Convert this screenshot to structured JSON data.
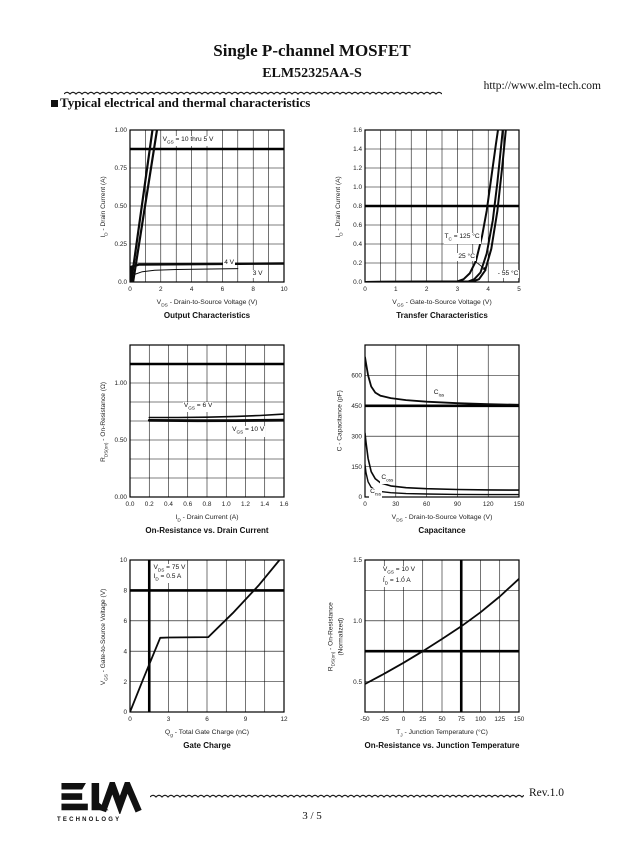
{
  "header": {
    "title": "Single P-channel MOSFET",
    "part_number": "ELM52325AA-S",
    "website": "http://www.elm-tech.com",
    "section_heading": "Typical electrical and thermal characteristics"
  },
  "footer": {
    "revision": "Rev.1.0",
    "page_number": "3 / 5",
    "logo_text": "ELM",
    "logo_subtext": "TECHNOLOGY"
  },
  "colors": {
    "ink": "#111111",
    "paper": "#ffffff"
  },
  "chart_data": [
    {
      "type": "line",
      "title": "Output Characteristics",
      "xlabel": "V_{DS} - Drain-to-Source Voltage (V)",
      "ylabel": "I_{D} - Drain Current (A)",
      "xlim": [
        0,
        10
      ],
      "ylim": [
        0,
        1
      ],
      "xticks": {
        "values": [
          0,
          2,
          4,
          6,
          8,
          10
        ],
        "labels": [
          "0",
          "2",
          "4",
          "6",
          "8",
          "10"
        ]
      },
      "yticks": {
        "values": [
          0,
          0.25,
          0.5,
          0.75,
          1
        ],
        "labels": [
          "0.0",
          "0.25",
          "0.50",
          "0.75",
          "1.00"
        ]
      },
      "grid": {
        "x_step": 1,
        "y_step": 0.125
      },
      "thick_lines": [
        {
          "dir": "h",
          "at": 0.875
        }
      ],
      "series": [
        {
          "name": "VGS = 10 V",
          "width": 2.2,
          "points": [
            [
              0.08,
              0
            ],
            [
              1.5,
              1.03
            ]
          ]
        },
        {
          "name": "VGS = 5 V",
          "width": 2.2,
          "points": [
            [
              0.2,
              0
            ],
            [
              1.8,
              1.03
            ]
          ]
        },
        {
          "name": "VGS = 4 V",
          "width": 2.4,
          "points": [
            [
              0,
              0
            ],
            [
              0.1,
              0.1
            ],
            [
              0.6,
              0.115
            ],
            [
              10,
              0.122
            ]
          ]
        },
        {
          "name": "VGS = 3 V",
          "width": 1,
          "points": [
            [
              0,
              0
            ],
            [
              0.3,
              0.05
            ],
            [
              0.8,
              0.068
            ],
            [
              1.6,
              0.077
            ],
            [
              3,
              0.082
            ],
            [
              7,
              0.088
            ]
          ]
        }
      ],
      "annotations": [
        {
          "text": "V_{GS} = 10 thru 5 V",
          "x": 2.05,
          "y": 0.935
        },
        {
          "text": "4 V",
          "x": 6.05,
          "y": 0.125
        },
        {
          "text": "3 V",
          "x": 7.9,
          "y": 0.052
        }
      ]
    },
    {
      "type": "line",
      "title": "Transfer Characteristics",
      "xlabel": "V_{GS} - Gate-to-Source Voltage (V)",
      "ylabel": "I_{D} - Drain Current (A)",
      "xlim": [
        0,
        5
      ],
      "ylim": [
        0,
        1.6
      ],
      "xticks": {
        "values": [
          0,
          1,
          2,
          3,
          4,
          5
        ],
        "labels": [
          "0",
          "1",
          "2",
          "3",
          "4",
          "5"
        ]
      },
      "yticks": {
        "values": [
          0,
          0.2,
          0.4,
          0.6,
          0.8,
          1,
          1.2,
          1.4,
          1.6
        ],
        "labels": [
          "0.0",
          "0.2",
          "0.4",
          "0.6",
          "0.8",
          "1.0",
          "1.2",
          "1.4",
          "1.6"
        ]
      },
      "grid": {
        "x_step": 0.5,
        "y_step": 0.2
      },
      "thick_lines": [
        {
          "dir": "h",
          "at": 0.8
        }
      ],
      "series": [
        {
          "name": "TC = 125 C",
          "width": 2,
          "points": [
            [
              0,
              0
            ],
            [
              3,
              0.005
            ],
            [
              3.2,
              0.03
            ],
            [
              3.4,
              0.09
            ],
            [
              3.6,
              0.22
            ],
            [
              3.8,
              0.48
            ],
            [
              3.95,
              0.75
            ],
            [
              4.1,
              1.1
            ],
            [
              4.25,
              1.45
            ],
            [
              4.33,
              1.63
            ]
          ]
        },
        {
          "name": "TC = 25 C",
          "width": 2,
          "points": [
            [
              0,
              0
            ],
            [
              3.35,
              0.005
            ],
            [
              3.55,
              0.03
            ],
            [
              3.75,
              0.1
            ],
            [
              3.95,
              0.3
            ],
            [
              4.15,
              0.65
            ],
            [
              4.3,
              1.05
            ],
            [
              4.44,
              1.5
            ],
            [
              4.48,
              1.63
            ]
          ]
        },
        {
          "name": "TC = -55 C",
          "width": 2,
          "points": [
            [
              0,
              0
            ],
            [
              3.5,
              0.005
            ],
            [
              3.7,
              0.03
            ],
            [
              3.9,
              0.12
            ],
            [
              4.1,
              0.35
            ],
            [
              4.3,
              0.75
            ],
            [
              4.45,
              1.2
            ],
            [
              4.58,
              1.63
            ]
          ]
        }
      ],
      "annotations": [
        {
          "text": "T_{C} = 125 °C",
          "x": 2.55,
          "y": 0.47
        },
        {
          "text": "25 °C",
          "x": 3.0,
          "y": 0.26
        },
        {
          "text": "- 55 °C",
          "x": 4.28,
          "y": 0.08
        }
      ],
      "arrows": [
        {
          "from": [
            3.55,
            0.225
          ],
          "to": [
            3.95,
            0.12
          ]
        }
      ]
    },
    {
      "type": "line",
      "title": "On-Resistance vs. Drain Current",
      "xlabel": "I_{D} - Drain Current (A)",
      "ylabel": "R_{DS(on)} - On-Resistance (Ω)",
      "xlim": [
        0,
        1.6
      ],
      "ylim": [
        0,
        1.3333
      ],
      "xticks": {
        "values": [
          0,
          0.2,
          0.4,
          0.6,
          0.8,
          1,
          1.2,
          1.4,
          1.6
        ],
        "labels": [
          "0.0",
          "0.2",
          "0.4",
          "0.6",
          "0.8",
          "1.0",
          "1.2",
          "1.4",
          "1.6"
        ]
      },
      "yticks": {
        "values": [
          0,
          0.5,
          1
        ],
        "labels": [
          "0.00",
          "0.50",
          "1.00"
        ]
      },
      "grid": {
        "x_step": 0.2,
        "y_step": 0.16667
      },
      "thick_lines": [
        {
          "dir": "h",
          "at": 1.16667
        }
      ],
      "series": [
        {
          "name": "VGS = 6 V",
          "width": 1.6,
          "points": [
            [
              0.2,
              0.697
            ],
            [
              0.5,
              0.697
            ],
            [
              0.8,
              0.7
            ],
            [
              1.1,
              0.707
            ],
            [
              1.35,
              0.715
            ],
            [
              1.6,
              0.727
            ]
          ]
        },
        {
          "name": "VGS = 10 V",
          "width": 2.8,
          "points": [
            [
              0.2,
              0.672
            ],
            [
              0.7,
              0.669
            ],
            [
              1.1,
              0.67
            ],
            [
              1.6,
              0.674
            ]
          ]
        }
      ],
      "annotations": [
        {
          "text": "V_{GS} = 6 V",
          "x": 0.55,
          "y": 0.8
        },
        {
          "text": "V_{GS} = 10 V",
          "x": 1.05,
          "y": 0.585
        }
      ]
    },
    {
      "type": "line",
      "title": "Capacitance",
      "xlabel": "V_{DS} - Drain-to-Source Voltage (V)",
      "ylabel": "C - Capacitance (pF)",
      "xlim": [
        0,
        150
      ],
      "ylim": [
        0,
        750
      ],
      "xticks": {
        "values": [
          0,
          30,
          60,
          90,
          120,
          150
        ],
        "labels": [
          "0",
          "30",
          "60",
          "90",
          "120",
          "150"
        ]
      },
      "yticks": {
        "values": [
          0,
          150,
          300,
          450,
          600
        ],
        "labels": [
          "0",
          "150",
          "300",
          "450",
          "600"
        ]
      },
      "grid": {
        "x_step": 30,
        "y_step": 150
      },
      "thick_lines": [
        {
          "dir": "h",
          "at": 450
        }
      ],
      "series": [
        {
          "name": "Ciss",
          "width": 1.8,
          "points": [
            [
              0,
              690
            ],
            [
              1,
              660
            ],
            [
              3,
              600
            ],
            [
              6,
              545
            ],
            [
              10,
              515
            ],
            [
              15,
              500
            ],
            [
              25,
              488
            ],
            [
              40,
              478
            ],
            [
              60,
              470
            ],
            [
              90,
              463
            ],
            [
              120,
              458
            ],
            [
              150,
              455
            ]
          ]
        },
        {
          "name": "Coss",
          "width": 1.6,
          "points": [
            [
              0,
              315
            ],
            [
              1,
              270
            ],
            [
              3,
              190
            ],
            [
              6,
              125
            ],
            [
              10,
              90
            ],
            [
              15,
              70
            ],
            [
              25,
              55
            ],
            [
              40,
              46
            ],
            [
              60,
              41
            ],
            [
              90,
              37
            ],
            [
              120,
              35
            ],
            [
              150,
              34
            ]
          ]
        },
        {
          "name": "Crss",
          "width": 1.4,
          "points": [
            [
              0,
              160
            ],
            [
              1,
              120
            ],
            [
              3,
              75
            ],
            [
              6,
              48
            ],
            [
              10,
              34
            ],
            [
              15,
              27
            ],
            [
              25,
              21
            ],
            [
              40,
              17
            ],
            [
              60,
              15
            ],
            [
              90,
              13
            ],
            [
              120,
              12
            ],
            [
              150,
              12
            ]
          ]
        }
      ],
      "annotations": [
        {
          "text": "C_{iss}",
          "x": 66,
          "y": 512
        },
        {
          "text": "C_{oss}",
          "x": 15,
          "y": 95
        },
        {
          "text": "C_{rss}",
          "x": 4,
          "y": 26
        }
      ]
    },
    {
      "type": "line",
      "title": "Gate Charge",
      "xlabel": "Q_{g} - Total Gate Charge (nC)",
      "ylabel": "V_{GS} - Gate-to-Source Voltage (V)",
      "xlim": [
        0,
        12
      ],
      "ylim": [
        0,
        10
      ],
      "xticks": {
        "values": [
          0,
          3,
          6,
          9,
          12
        ],
        "labels": [
          "0",
          "3",
          "6",
          "9",
          "12"
        ]
      },
      "yticks": {
        "values": [
          0,
          2,
          4,
          6,
          8,
          10
        ],
        "labels": [
          "0",
          "2",
          "4",
          "6",
          "8",
          "10"
        ]
      },
      "grid": {
        "x_step": 1.5,
        "y_step": 2
      },
      "thick_lines": [
        {
          "dir": "h",
          "at": 8
        },
        {
          "dir": "v",
          "at": 1.5
        }
      ],
      "series": [
        {
          "name": "gate charge",
          "width": 1.8,
          "points": [
            [
              0,
              0
            ],
            [
              1,
              2.1
            ],
            [
              2.35,
              4.88
            ],
            [
              3,
              4.9
            ],
            [
              6.1,
              4.93
            ],
            [
              8,
              6.5
            ],
            [
              10,
              8.3
            ],
            [
              11.65,
              10
            ]
          ]
        }
      ],
      "annotations": [
        {
          "text": "V_{DS} = 75 V",
          "x": 1.75,
          "y": 9.5
        },
        {
          "text": "I_{D} = 0.5 A",
          "x": 1.75,
          "y": 8.9
        }
      ]
    },
    {
      "type": "line",
      "title": "On-Resistance vs. Junction Temperature",
      "xlabel": "T_{J} - Junction Temperature (°C)",
      "ylabel": "R_{DS(on)} - On-Resistance",
      "ylabel2": "(Normalized)",
      "xlim": [
        -50,
        150
      ],
      "ylim": [
        0.25,
        1.5
      ],
      "xticks": {
        "values": [
          -50,
          -25,
          0,
          25,
          50,
          75,
          100,
          125,
          150
        ],
        "labels": [
          "-50",
          "-25",
          "0",
          "25",
          "50",
          "75",
          "100",
          "125",
          "150"
        ]
      },
      "yticks": {
        "values": [
          0.5,
          1,
          1.5
        ],
        "labels": [
          "0.5",
          "1.0",
          "1.5"
        ]
      },
      "grid": {
        "x_step": 25,
        "y_step": 0.25
      },
      "thick_lines": [
        {
          "dir": "h",
          "at": 0.75
        },
        {
          "dir": "v",
          "at": 75
        }
      ],
      "series": [
        {
          "name": "normalized RDS(on)",
          "width": 1.8,
          "points": [
            [
              -50,
              0.48
            ],
            [
              -25,
              0.565
            ],
            [
              0,
              0.655
            ],
            [
              25,
              0.75
            ],
            [
              50,
              0.85
            ],
            [
              75,
              0.955
            ],
            [
              100,
              1.07
            ],
            [
              125,
              1.2
            ],
            [
              150,
              1.345
            ]
          ]
        }
      ],
      "annotations": [
        {
          "text": "V_{GS} = 10 V",
          "x": -28,
          "y": 1.42
        },
        {
          "text": "I_{D} = 1.0 A",
          "x": -28,
          "y": 1.33
        }
      ]
    }
  ]
}
